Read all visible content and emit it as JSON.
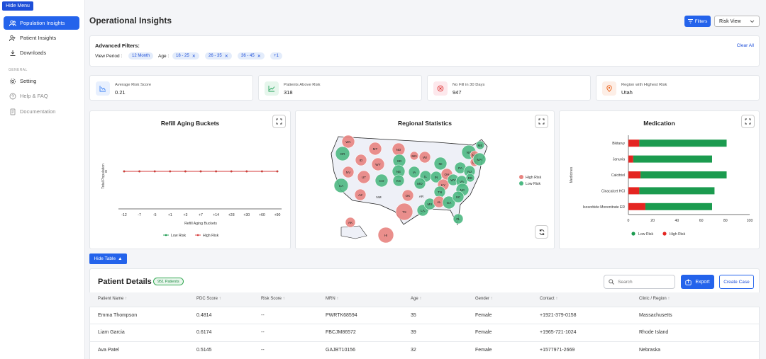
{
  "sidebar": {
    "hide_menu": "Hide Menu",
    "items": [
      {
        "label": "Population Insights",
        "icon": "users-icon",
        "active": true
      },
      {
        "label": "Patient Insights",
        "icon": "user-group-icon"
      },
      {
        "label": "Downloads",
        "icon": "download-icon"
      }
    ],
    "section_label": "GENERAL",
    "general": [
      {
        "label": "Setting",
        "icon": "gear-icon"
      },
      {
        "label": "Help & FAQ",
        "icon": "question-icon"
      },
      {
        "label": "Documentation",
        "icon": "document-icon"
      }
    ]
  },
  "header": {
    "title": "Operational Insights",
    "filters_label": "Filters",
    "view_select": "Risk View"
  },
  "filters": {
    "title": "Advanced Filters:",
    "clear": "Clear All",
    "view_period_label": "View Period :",
    "view_period": "12 Month",
    "age_label": "Age :",
    "age_chips": [
      "18 - 25",
      "26 - 35",
      "36 - 45"
    ],
    "more": "+1"
  },
  "kpis": [
    {
      "label": "Average Risk Score",
      "value": "0.21",
      "icon": "chart-line-icon",
      "color": "#3b82f6",
      "bg": "#e8f0fe"
    },
    {
      "label": "Patients Above Risk",
      "value": "318",
      "icon": "trend-up-icon",
      "color": "#22a35a",
      "bg": "#e6f6ec"
    },
    {
      "label": "No Fill in 30 Days",
      "value": "947",
      "icon": "x-circle-icon",
      "color": "#dc2626",
      "bg": "#fde8ec"
    },
    {
      "label": "Region with Highest Risk",
      "value": "Utah",
      "icon": "map-pin-icon",
      "color": "#ea580c",
      "bg": "#fdeee6"
    }
  ],
  "refill": {
    "title": "Refill Aging Buckets"
  },
  "regional": {
    "title": "Regional Statistics",
    "legend": [
      "High Risk",
      "Low Risk"
    ],
    "states": [
      {
        "s": "WA",
        "r": "h"
      },
      {
        "s": "OR",
        "r": "l"
      },
      {
        "s": "MT",
        "r": "h"
      },
      {
        "s": "ND",
        "r": "h"
      },
      {
        "s": "MN",
        "r": "h"
      },
      {
        "s": "WI",
        "r": "h"
      },
      {
        "s": "ID",
        "r": "h"
      },
      {
        "s": "WY",
        "r": "h"
      },
      {
        "s": "SD",
        "r": "l"
      },
      {
        "s": "IA",
        "r": "l"
      },
      {
        "s": "MI",
        "r": "l"
      },
      {
        "s": "NY",
        "r": "l"
      },
      {
        "s": "ME",
        "r": "l"
      },
      {
        "s": "NV",
        "r": "h"
      },
      {
        "s": "UT",
        "r": "h"
      },
      {
        "s": "CO",
        "r": "l"
      },
      {
        "s": "NE",
        "r": "l"
      },
      {
        "s": "IL",
        "r": "l"
      },
      {
        "s": "IN",
        "r": "l"
      },
      {
        "s": "OH",
        "r": "h"
      },
      {
        "s": "PA",
        "r": "l"
      },
      {
        "s": "NJ",
        "r": "l"
      },
      {
        "s": "CA",
        "r": "l"
      },
      {
        "s": "AZ",
        "r": "h"
      },
      {
        "s": "NM",
        "r": "n"
      },
      {
        "s": "KS",
        "r": "l"
      },
      {
        "s": "MO",
        "r": "l"
      },
      {
        "s": "KY",
        "r": "h"
      },
      {
        "s": "WV",
        "r": "l"
      },
      {
        "s": "VA",
        "r": "l"
      },
      {
        "s": "OK",
        "r": "h"
      },
      {
        "s": "AR",
        "r": "n"
      },
      {
        "s": "TN",
        "r": "l"
      },
      {
        "s": "NC",
        "r": "l"
      },
      {
        "s": "TX",
        "r": "h"
      },
      {
        "s": "LA",
        "r": "l"
      },
      {
        "s": "MS",
        "r": "l"
      },
      {
        "s": "AL",
        "r": "h"
      },
      {
        "s": "GA",
        "r": "l"
      },
      {
        "s": "SC",
        "r": "l"
      },
      {
        "s": "FL",
        "r": "l"
      },
      {
        "s": "AK",
        "r": "h"
      },
      {
        "s": "HI",
        "r": "h"
      },
      {
        "s": "NH",
        "r": "h"
      },
      {
        "s": "CT",
        "r": "h"
      },
      {
        "s": "MA",
        "r": "l"
      },
      {
        "s": "DE",
        "r": "l"
      }
    ]
  },
  "medication": {
    "title": "Medication",
    "ylabel": "Medicines",
    "legend": [
      "Low Risk",
      "High Risk"
    ]
  },
  "table_toggle": "Hide Table",
  "patients": {
    "title": "Patient Details",
    "badge": "951 Patients",
    "search_placeholder": "Search",
    "export": "Export",
    "create": "Create Case",
    "columns": [
      "Patient Name",
      "PDC Score",
      "Risk Score",
      "MRN",
      "Age",
      "Gender",
      "Contact",
      "Clinic / Region"
    ],
    "rows": [
      [
        "Emma Thompson",
        "0.4814",
        "--",
        "PWRTK68594",
        "35",
        "Female",
        "+1921-379-0158",
        "Massachusetts"
      ],
      [
        "Liam Garcia",
        "0.6174",
        "--",
        "FBCJM86572",
        "39",
        "Female",
        "+1965-721-1024",
        "Rhode Island"
      ],
      [
        "Ava Patel",
        "0.5145",
        "--",
        "GAJBT10156",
        "32",
        "Female",
        "+1577971-2669",
        "Nebraska"
      ]
    ]
  },
  "colors": {
    "accent": "#2463eb",
    "high": "#e8837f",
    "low": "#4cb882",
    "bar_low": "#1b9b4f",
    "bar_high": "#e42521"
  },
  "chart_data": [
    {
      "type": "line",
      "title": "Refill Aging Buckets",
      "xlabel": "Refill Aging Buckets",
      "ylabel": "Total Population",
      "categories": [
        "-12",
        "-7",
        "-5",
        "+1",
        "+3",
        "+7",
        "+14",
        "+28",
        "+30",
        "+60",
        "+90"
      ],
      "series": [
        {
          "name": "Low Risk",
          "values": [
            0,
            0,
            0,
            0,
            0,
            0,
            0,
            0,
            0,
            0,
            0
          ],
          "color": "#1b9b4f"
        },
        {
          "name": "High Risk",
          "values": [
            0,
            0,
            0,
            0,
            0,
            0,
            0,
            0,
            0,
            0,
            0
          ],
          "color": "#d63a3a"
        }
      ],
      "yticks": [
        "0"
      ],
      "legend": "bottom"
    },
    {
      "type": "bar",
      "orientation": "horizontal",
      "stacked": true,
      "title": "Medication",
      "xlabel": "",
      "ylabel": "Medicines",
      "categories": [
        "Biktarvy",
        "Januvia",
        "Calcitriol",
        "Cinacalcet HCl",
        "Isosorbide Mononitrate ER"
      ],
      "series": [
        {
          "name": "High Risk",
          "values": [
            9,
            4,
            10,
            9,
            14
          ],
          "color": "#e42521"
        },
        {
          "name": "Low Risk",
          "values": [
            72,
            65,
            71,
            62,
            55
          ],
          "color": "#1b9b4f"
        }
      ],
      "xlim": [
        0,
        100
      ],
      "xticks": [
        "0",
        "20",
        "40",
        "60",
        "80",
        "100"
      ],
      "legend": "bottom"
    }
  ]
}
